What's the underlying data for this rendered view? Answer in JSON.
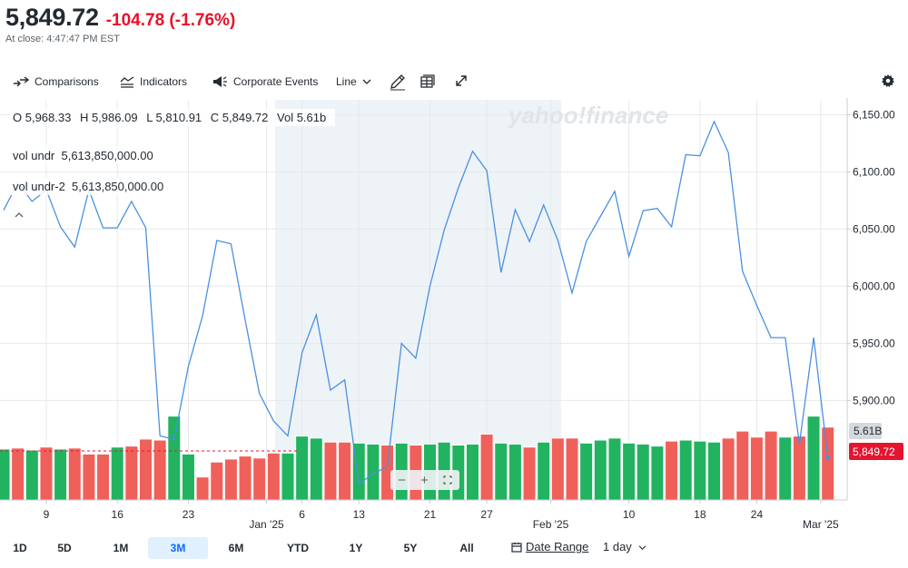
{
  "quote": {
    "price": "5,849.72",
    "change": "-104.78 (-1.76%)",
    "close_time": "At close: 4:47:47 PM EST"
  },
  "toolbar": {
    "comparisons": "Comparisons",
    "indicators": "Indicators",
    "corporate_events": "Corporate Events",
    "chart_type": "Line"
  },
  "ohlc": {
    "open": "O 5,968.33",
    "high": "H 5,986.09",
    "low": "L 5,810.91",
    "close": "C 5,849.72",
    "vol": "Vol 5.61b"
  },
  "legend": {
    "vol_undr": "vol undr",
    "vol_undr_value": "5,613,850,000.00",
    "vol_undr2": "vol undr-2",
    "vol_undr2_value": "5,613,850,000.00"
  },
  "watermark": "yahoo!finance",
  "badges": {
    "volume": "5.61B",
    "price": "5,849.72"
  },
  "ranges": [
    "1D",
    "5D",
    "1M",
    "3M",
    "6M",
    "YTD",
    "1Y",
    "5Y",
    "All"
  ],
  "active_range": "3M",
  "date_range_label": "Date Range",
  "interval_label": "1 day",
  "colors": {
    "line": "#4a90e2",
    "up": "#21b35f",
    "down": "#f0605a",
    "badge_red": "#e4152f",
    "shade": "#eef3f7"
  },
  "chart_data": {
    "type": "line",
    "title": "",
    "y_ticks": [
      "5,900.00",
      "5,950.00",
      "6,000.00",
      "6,050.00",
      "6,100.00",
      "6,150.00"
    ],
    "ylim": [
      5813,
      6163
    ],
    "x_tick_labels": [
      {
        "label": "9",
        "index": 3
      },
      {
        "label": "16",
        "index": 8
      },
      {
        "label": "23",
        "index": 13
      },
      {
        "label": "Jan '25",
        "index": 18.5
      },
      {
        "label": "6",
        "index": 21
      },
      {
        "label": "13",
        "index": 25
      },
      {
        "label": "21",
        "index": 30
      },
      {
        "label": "27",
        "index": 34
      },
      {
        "label": "Feb '25",
        "index": 38.5
      },
      {
        "label": "10",
        "index": 44
      },
      {
        "label": "18",
        "index": 49
      },
      {
        "label": "24",
        "index": 53
      },
      {
        "label": "Mar '25",
        "index": 57.5
      }
    ],
    "series": [
      {
        "values": [
          6066.4,
          6090.5,
          6074.1,
          6084.2,
          6051.9,
          6034.2,
          6084.2,
          6051.0,
          6051.0,
          6074.1,
          6051.0,
          5869.0,
          5866.0,
          5930.0,
          5974.0,
          6040.0,
          6037.0,
          5970.0,
          5906.0,
          5882.0,
          5869.0,
          5942.0,
          5975.0,
          5909.0,
          5918.0,
          5827.0,
          5836.0,
          5842.0,
          5950.0,
          5937.0,
          6000.0,
          6049.0,
          6086.0,
          6118.0,
          6101.0,
          6012.0,
          6067.0,
          6039.0,
          6071.0,
          6040.0,
          5994.0,
          6039.0,
          6061.0,
          6083.0,
          6026.0,
          6066.0,
          6068.0,
          6052.0,
          6115.0,
          6114.0,
          6144.0,
          6117.0,
          6013.0,
          5983.0,
          5955.0,
          5955.0,
          5862.0,
          5955.0,
          5849.72
        ]
      }
    ],
    "volume_series": {
      "name": "Volume",
      "direction": [
        "u",
        "d",
        "u",
        "d",
        "u",
        "d",
        "d",
        "d",
        "u",
        "d",
        "d",
        "d",
        "u",
        "u",
        "d",
        "d",
        "d",
        "d",
        "d",
        "d",
        "u",
        "u",
        "u",
        "d",
        "d",
        "u",
        "u",
        "d",
        "u",
        "d",
        "u",
        "u",
        "u",
        "u",
        "d",
        "u",
        "u",
        "d",
        "u",
        "d",
        "d",
        "u",
        "u",
        "u",
        "u",
        "u",
        "u",
        "d",
        "u",
        "u",
        "u",
        "d",
        "d",
        "d",
        "d",
        "u",
        "d",
        "u",
        "d"
      ],
      "values": [
        5.1,
        5.2,
        5.0,
        5.3,
        5.1,
        5.2,
        4.6,
        4.6,
        5.3,
        5.4,
        6.1,
        6.0,
        8.4,
        4.6,
        2.3,
        3.8,
        4.1,
        4.4,
        4.2,
        4.7,
        4.7,
        6.4,
        6.2,
        5.8,
        5.8,
        5.7,
        5.6,
        5.5,
        5.7,
        5.5,
        5.6,
        5.8,
        5.5,
        5.6,
        6.6,
        5.7,
        5.6,
        5.3,
        5.8,
        6.2,
        6.2,
        5.7,
        6.0,
        6.2,
        5.7,
        5.6,
        5.4,
        5.9,
        6.0,
        5.9,
        5.8,
        6.2,
        6.9,
        6.3,
        6.9,
        6.3,
        6.4,
        8.4,
        7.3
      ]
    }
  }
}
